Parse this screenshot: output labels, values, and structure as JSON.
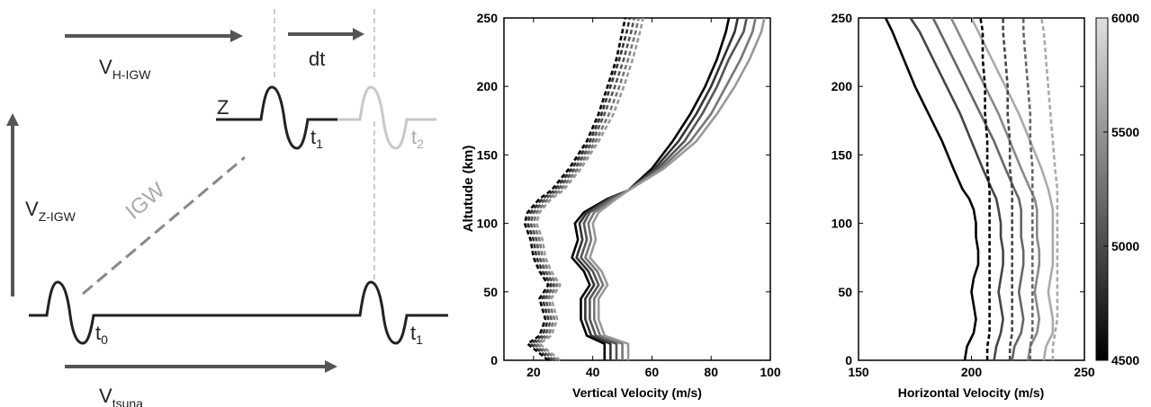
{
  "diagram": {
    "v_h_igw": {
      "main": "V",
      "sub": "H-IGW"
    },
    "dt": "dt",
    "z": "Z",
    "t1_top": {
      "main": "t",
      "sub": "1"
    },
    "t2_top": {
      "main": "t",
      "sub": "2"
    },
    "v_z_igw": {
      "main": "V",
      "sub": "Z-IGW"
    },
    "igw": "IGW",
    "t0": {
      "main": "t",
      "sub": "0"
    },
    "t1_bottom": {
      "main": "t",
      "sub": "1"
    },
    "v_tsuna": {
      "main": "V",
      "sub": "tsuna"
    }
  },
  "chart_data": [
    {
      "type": "line",
      "xlabel": "Vertical Velocity (m/s)",
      "ylabel": "Altutude (km)",
      "xlim": [
        10,
        100
      ],
      "ylim": [
        0,
        250
      ],
      "xticks": [
        "20",
        "40",
        "60",
        "80",
        "100"
      ],
      "yticks": [
        "0",
        "50",
        "100",
        "150",
        "200",
        "250"
      ],
      "y": [
        0,
        12,
        18,
        30,
        45,
        55,
        65,
        75,
        88,
        100,
        108,
        118,
        124,
        140,
        160,
        180,
        200,
        220,
        240,
        250
      ],
      "series": [
        {
          "style": "solid",
          "color": "#000000",
          "x": [
            44,
            44,
            38,
            36,
            36,
            39,
            37,
            33,
            35,
            34,
            37,
            45,
            52,
            60,
            67,
            73,
            78,
            82,
            85,
            86
          ]
        },
        {
          "style": "solid",
          "color": "#333333",
          "x": [
            46,
            46,
            39.5,
            37.5,
            37.5,
            40.5,
            38.5,
            34.5,
            36.5,
            35.5,
            38,
            45.5,
            52,
            61,
            69,
            75,
            80,
            84,
            88,
            89
          ]
        },
        {
          "style": "solid",
          "color": "#555555",
          "x": [
            48,
            48,
            41,
            39,
            39,
            42,
            40,
            36,
            38,
            37,
            39,
            46,
            52,
            62,
            71,
            77,
            82,
            86,
            91,
            92
          ]
        },
        {
          "style": "solid",
          "color": "#777777",
          "x": [
            50,
            50,
            42.5,
            40.5,
            40.5,
            43.5,
            41.5,
            37.5,
            39.5,
            38.5,
            40.5,
            47,
            52,
            63,
            73,
            80,
            85,
            90,
            94,
            95
          ]
        },
        {
          "style": "solid",
          "color": "#999999",
          "x": [
            52,
            52,
            44,
            42,
            42,
            45,
            43,
            39,
            41,
            40,
            42,
            48,
            52,
            64,
            75,
            82,
            88,
            93,
            97,
            98
          ]
        },
        {
          "style": "dashed",
          "color": "#000000",
          "x": [
            25,
            18,
            22,
            24,
            22,
            25,
            22,
            20,
            19,
            17,
            18,
            22,
            26,
            32,
            38,
            42,
            45,
            48,
            50,
            51
          ]
        },
        {
          "style": "dashed",
          "color": "#333333",
          "x": [
            26,
            19,
            23,
            25,
            23,
            26,
            23,
            21,
            20,
            18,
            19,
            23,
            27,
            33,
            39,
            43,
            46,
            49,
            51.5,
            52.5
          ]
        },
        {
          "style": "dashed",
          "color": "#555555",
          "x": [
            27,
            20,
            24,
            26,
            24,
            27,
            24,
            22,
            21,
            19,
            20,
            24,
            28,
            34,
            40,
            44,
            47.5,
            50.5,
            53,
            54
          ]
        },
        {
          "style": "dashed",
          "color": "#777777",
          "x": [
            28,
            21,
            25,
            27,
            25,
            28,
            25,
            23,
            22,
            20,
            21,
            25,
            29,
            35,
            41,
            45.5,
            49,
            52,
            54.5,
            55.5
          ]
        },
        {
          "style": "dashed",
          "color": "#999999",
          "x": [
            29,
            22,
            26,
            28,
            26,
            29,
            26,
            24,
            23,
            21,
            22,
            26,
            30,
            36,
            42,
            47,
            50.5,
            53.5,
            56,
            57
          ]
        }
      ]
    },
    {
      "type": "line",
      "xlabel": "Horizontal Velocity (m/s)",
      "xlim": [
        150,
        250
      ],
      "ylim": [
        0,
        250
      ],
      "xticks": [
        "150",
        "200",
        "250"
      ],
      "yticks": [
        "0",
        "50",
        "100",
        "150",
        "200",
        "250"
      ],
      "y": [
        0,
        10,
        20,
        30,
        40,
        50,
        60,
        70,
        80,
        90,
        100,
        110,
        118,
        125,
        140,
        160,
        180,
        200,
        220,
        240,
        250
      ],
      "series": [
        {
          "style": "solid",
          "color": "#000000",
          "x": [
            197,
            198,
            201,
            202,
            201,
            200,
            201,
            203,
            203,
            202,
            202,
            201,
            199,
            196,
            192,
            187,
            181,
            175,
            170,
            165,
            162
          ]
        },
        {
          "style": "solid",
          "color": "#444444",
          "x": [
            210,
            211,
            213,
            214,
            213,
            212,
            213,
            214,
            214,
            213,
            213,
            212,
            211,
            209,
            205,
            200,
            195,
            189,
            183,
            177,
            173
          ]
        },
        {
          "style": "solid",
          "color": "#666666",
          "x": [
            218,
            219,
            222,
            223,
            222,
            221,
            222,
            223,
            223,
            222,
            222,
            222,
            221,
            219,
            215,
            210,
            204,
            198,
            192,
            186,
            183
          ]
        },
        {
          "style": "solid",
          "color": "#888888",
          "x": [
            225,
            226,
            229,
            230,
            229,
            228,
            229,
            230,
            230,
            229,
            229,
            229,
            228,
            226,
            222,
            217,
            212,
            206,
            200,
            194,
            191
          ]
        },
        {
          "style": "solid",
          "color": "#aaaaaa",
          "x": [
            232,
            233,
            236,
            236,
            235,
            234,
            235,
            236,
            236,
            236,
            236,
            236,
            235,
            234,
            231,
            226,
            221,
            215,
            209,
            203,
            200
          ]
        },
        {
          "style": "dashed",
          "color": "#000000",
          "x": [
            207,
            207,
            208,
            208,
            208,
            208,
            208,
            208,
            208,
            208,
            208,
            208,
            208,
            208,
            207,
            207,
            206,
            206,
            205,
            205,
            204
          ]
        },
        {
          "style": "dashed",
          "color": "#444444",
          "x": [
            217,
            217,
            218,
            218,
            218,
            218,
            218,
            218,
            218,
            218,
            218,
            218,
            218,
            218,
            217,
            217,
            216,
            216,
            215,
            214,
            214
          ]
        },
        {
          "style": "dashed",
          "color": "#666666",
          "x": [
            226,
            226,
            227,
            227,
            227,
            227,
            227,
            227,
            227,
            227,
            227,
            227,
            227,
            227,
            227,
            226,
            226,
            225,
            224,
            223,
            223
          ]
        },
        {
          "style": "dashed",
          "color": "#aaaaaa",
          "x": [
            236,
            236,
            237,
            238,
            238,
            238,
            238,
            238,
            238,
            238,
            238,
            238,
            238,
            238,
            237,
            236,
            235,
            234,
            233,
            232,
            231
          ]
        }
      ],
      "colorbar": {
        "min": 4500,
        "max": 6000,
        "ticks": [
          "4500",
          "5000",
          "5500",
          "6000"
        ],
        "colors": [
          "#000000",
          "#e0e0e0"
        ]
      }
    }
  ]
}
